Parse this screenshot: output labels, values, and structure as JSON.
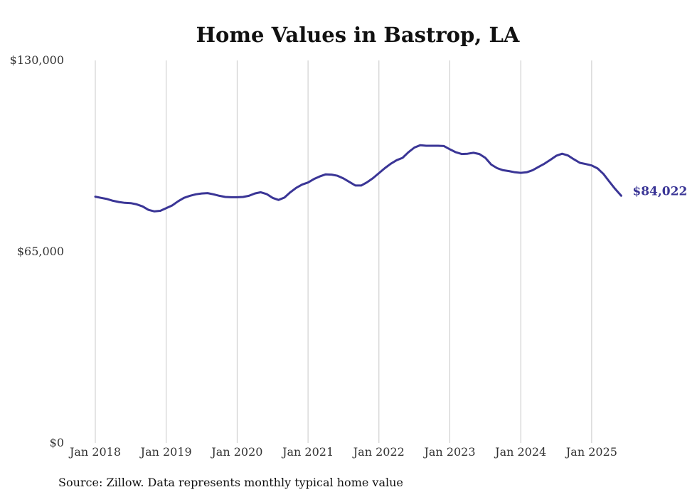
{
  "chart_data": {
    "type": "line",
    "title": "Home Values in Bastrop, LA",
    "xlabel": "",
    "ylabel": "",
    "ylim": [
      0,
      130000
    ],
    "xlim": [
      "2018-01",
      "2025-06"
    ],
    "y_ticks": [
      {
        "value": 0,
        "label": "$0"
      },
      {
        "value": 65000,
        "label": "$65,000"
      },
      {
        "value": 130000,
        "label": "$130,000"
      }
    ],
    "x_ticks": [
      {
        "value": "2018-01",
        "label": "Jan 2018"
      },
      {
        "value": "2019-01",
        "label": "Jan 2019"
      },
      {
        "value": "2020-01",
        "label": "Jan 2020"
      },
      {
        "value": "2021-01",
        "label": "Jan 2021"
      },
      {
        "value": "2022-01",
        "label": "Jan 2022"
      },
      {
        "value": "2023-01",
        "label": "Jan 2023"
      },
      {
        "value": "2024-01",
        "label": "Jan 2024"
      },
      {
        "value": "2025-01",
        "label": "Jan 2025"
      }
    ],
    "grid": {
      "vertical": true,
      "horizontal": false
    },
    "line_color": "#3a3596",
    "end_label": "$84,022",
    "series": [
      {
        "x": [
          "2018-01",
          "2018-02",
          "2018-03",
          "2018-04",
          "2018-05",
          "2018-06",
          "2018-07",
          "2018-08",
          "2018-09",
          "2018-10",
          "2018-11",
          "2018-12",
          "2019-01",
          "2019-02",
          "2019-03",
          "2019-04",
          "2019-05",
          "2019-06",
          "2019-07",
          "2019-08",
          "2019-09",
          "2019-10",
          "2019-11",
          "2019-12",
          "2020-01",
          "2020-02",
          "2020-03",
          "2020-04",
          "2020-05",
          "2020-06",
          "2020-07",
          "2020-08",
          "2020-09",
          "2020-10",
          "2020-11",
          "2020-12",
          "2021-01",
          "2021-02",
          "2021-03",
          "2021-04",
          "2021-05",
          "2021-06",
          "2021-07",
          "2021-08",
          "2021-09",
          "2021-10",
          "2021-11",
          "2021-12",
          "2022-01",
          "2022-02",
          "2022-03",
          "2022-04",
          "2022-05",
          "2022-06",
          "2022-07",
          "2022-08",
          "2022-09",
          "2022-10",
          "2022-11",
          "2022-12",
          "2023-01",
          "2023-02",
          "2023-03",
          "2023-04",
          "2023-05",
          "2023-06",
          "2023-07",
          "2023-08",
          "2023-09",
          "2023-10",
          "2023-11",
          "2023-12",
          "2024-01",
          "2024-02",
          "2024-03",
          "2024-04",
          "2024-05",
          "2024-06",
          "2024-07",
          "2024-08",
          "2024-09",
          "2024-10",
          "2024-11",
          "2024-12",
          "2025-01",
          "2025-02",
          "2025-03",
          "2025-04",
          "2025-05",
          "2025-06"
        ],
        "values": [
          83700,
          83300,
          82900,
          82300,
          81900,
          81600,
          81500,
          81100,
          80400,
          79200,
          78700,
          78900,
          79800,
          80700,
          82100,
          83300,
          84000,
          84500,
          84800,
          84900,
          84500,
          84000,
          83600,
          83500,
          83500,
          83600,
          84000,
          84800,
          85200,
          84600,
          83300,
          82600,
          83400,
          85200,
          86700,
          87800,
          88500,
          89700,
          90600,
          91300,
          91200,
          90800,
          89900,
          88700,
          87500,
          87500,
          88600,
          90000,
          91700,
          93400,
          94900,
          96100,
          96900,
          98800,
          100400,
          101200,
          101000,
          101000,
          101000,
          100900,
          99800,
          98800,
          98200,
          98300,
          98600,
          98200,
          96900,
          94600,
          93400,
          92700,
          92400,
          92000,
          91800,
          92000,
          92700,
          93800,
          94900,
          96200,
          97600,
          98300,
          97700,
          96400,
          95200,
          94800,
          94300,
          93300,
          91400,
          88800,
          86300,
          84022
        ]
      }
    ],
    "source": "Source: Zillow. Data represents monthly typical home value"
  }
}
